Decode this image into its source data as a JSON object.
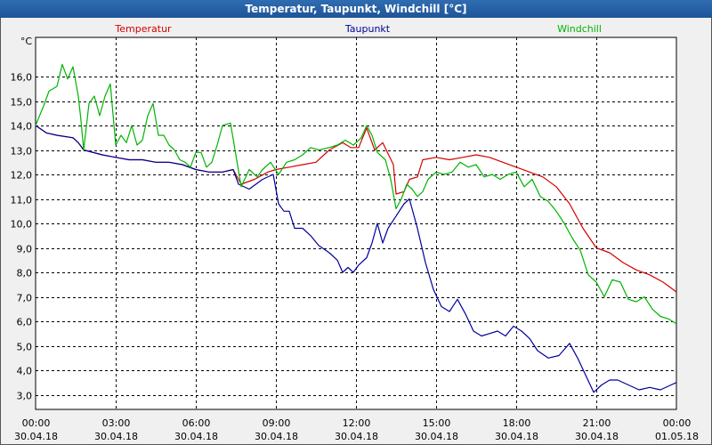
{
  "window": {
    "title": "Temperatur, Taupunkt, Windchill [°C]"
  },
  "chart_data": {
    "type": "line",
    "title": "Temperatur, Taupunkt, Windchill [°C]",
    "unit_label": "°C",
    "ylim": [
      2.4,
      17.6
    ],
    "yticks": [
      3,
      4,
      5,
      6,
      7,
      8,
      9,
      10,
      11,
      12,
      13,
      14,
      15,
      16
    ],
    "ytick_labels": [
      "3,0",
      "4,0",
      "5,0",
      "6,0",
      "7,0",
      "8,0",
      "9,0",
      "10,0",
      "11,0",
      "12,0",
      "13,0",
      "14,0",
      "15,0",
      "16,0"
    ],
    "xlim": [
      0,
      24
    ],
    "xticks": [
      {
        "h": 0,
        "time": "00:00",
        "date": "30.04.18"
      },
      {
        "h": 3,
        "time": "03:00",
        "date": "30.04.18"
      },
      {
        "h": 6,
        "time": "06:00",
        "date": "30.04.18"
      },
      {
        "h": 9,
        "time": "09:00",
        "date": "30.04.18"
      },
      {
        "h": 12,
        "time": "12:00",
        "date": "30.04.18"
      },
      {
        "h": 15,
        "time": "15:00",
        "date": "30.04.18"
      },
      {
        "h": 18,
        "time": "18:00",
        "date": "30.04.18"
      },
      {
        "h": 21,
        "time": "21:00",
        "date": "30.04.18"
      },
      {
        "h": 24,
        "time": "00:00",
        "date": "01.05.18"
      }
    ],
    "grid": true,
    "series": [
      {
        "name": "Temperatur",
        "color": "#d40000",
        "points": [
          [
            0,
            14.0
          ],
          [
            0.4,
            13.7
          ],
          [
            0.8,
            13.6
          ],
          [
            1.4,
            13.5
          ],
          [
            1.6,
            13.3
          ],
          [
            1.8,
            13.0
          ],
          [
            2.5,
            12.8
          ],
          [
            3,
            12.7
          ],
          [
            3.5,
            12.6
          ],
          [
            4,
            12.6
          ],
          [
            4.5,
            12.5
          ],
          [
            5,
            12.5
          ],
          [
            5.5,
            12.4
          ],
          [
            6,
            12.2
          ],
          [
            6.5,
            12.1
          ],
          [
            7,
            12.1
          ],
          [
            7.4,
            12.2
          ],
          [
            7.7,
            11.6
          ],
          [
            8.2,
            11.8
          ],
          [
            8.7,
            12.1
          ],
          [
            9,
            12.2
          ],
          [
            9.5,
            12.3
          ],
          [
            10,
            12.4
          ],
          [
            10.5,
            12.5
          ],
          [
            11,
            13.0
          ],
          [
            11.5,
            13.3
          ],
          [
            11.8,
            13.1
          ],
          [
            12.1,
            13.1
          ],
          [
            12.4,
            13.9
          ],
          [
            12.7,
            13.0
          ],
          [
            13.0,
            13.3
          ],
          [
            13.4,
            12.4
          ],
          [
            13.5,
            11.2
          ],
          [
            13.8,
            11.3
          ],
          [
            14.0,
            11.8
          ],
          [
            14.3,
            11.9
          ],
          [
            14.5,
            12.6
          ],
          [
            15,
            12.7
          ],
          [
            15.5,
            12.6
          ],
          [
            16,
            12.7
          ],
          [
            16.5,
            12.8
          ],
          [
            17,
            12.7
          ],
          [
            17.5,
            12.5
          ],
          [
            18,
            12.3
          ],
          [
            18.5,
            12.1
          ],
          [
            19,
            11.9
          ],
          [
            19.5,
            11.5
          ],
          [
            20,
            10.8
          ],
          [
            20.5,
            9.8
          ],
          [
            21,
            9.0
          ],
          [
            21.5,
            8.8
          ],
          [
            22,
            8.4
          ],
          [
            22.5,
            8.1
          ],
          [
            23,
            7.9
          ],
          [
            23.5,
            7.6
          ],
          [
            24,
            7.2
          ]
        ]
      },
      {
        "name": "Taupunkt",
        "color": "#00009c",
        "points": [
          [
            0,
            14.0
          ],
          [
            0.4,
            13.7
          ],
          [
            0.8,
            13.6
          ],
          [
            1.4,
            13.5
          ],
          [
            1.6,
            13.3
          ],
          [
            1.8,
            13.0
          ],
          [
            2.5,
            12.8
          ],
          [
            3,
            12.7
          ],
          [
            3.5,
            12.6
          ],
          [
            4,
            12.6
          ],
          [
            4.5,
            12.5
          ],
          [
            5,
            12.5
          ],
          [
            5.5,
            12.4
          ],
          [
            6,
            12.2
          ],
          [
            6.5,
            12.1
          ],
          [
            7,
            12.1
          ],
          [
            7.4,
            12.2
          ],
          [
            7.6,
            11.6
          ],
          [
            8,
            11.4
          ],
          [
            8.5,
            11.8
          ],
          [
            8.9,
            12.0
          ],
          [
            9.1,
            10.8
          ],
          [
            9.3,
            10.5
          ],
          [
            9.5,
            10.5
          ],
          [
            9.7,
            9.8
          ],
          [
            10.0,
            9.8
          ],
          [
            10.3,
            9.5
          ],
          [
            10.6,
            9.1
          ],
          [
            11.0,
            8.8
          ],
          [
            11.3,
            8.5
          ],
          [
            11.5,
            8.0
          ],
          [
            11.7,
            8.2
          ],
          [
            11.9,
            8.0
          ],
          [
            12.1,
            8.3
          ],
          [
            12.4,
            8.6
          ],
          [
            12.6,
            9.2
          ],
          [
            12.8,
            10.0
          ],
          [
            13.0,
            9.2
          ],
          [
            13.2,
            9.8
          ],
          [
            13.5,
            10.3
          ],
          [
            13.8,
            10.8
          ],
          [
            14.0,
            11.0
          ],
          [
            14.3,
            9.8
          ],
          [
            14.6,
            8.4
          ],
          [
            14.9,
            7.3
          ],
          [
            15.2,
            6.6
          ],
          [
            15.5,
            6.4
          ],
          [
            15.8,
            6.9
          ],
          [
            16.1,
            6.3
          ],
          [
            16.4,
            5.6
          ],
          [
            16.7,
            5.4
          ],
          [
            17.0,
            5.5
          ],
          [
            17.3,
            5.6
          ],
          [
            17.6,
            5.4
          ],
          [
            17.9,
            5.8
          ],
          [
            18.2,
            5.6
          ],
          [
            18.5,
            5.3
          ],
          [
            18.8,
            4.8
          ],
          [
            19.2,
            4.5
          ],
          [
            19.6,
            4.6
          ],
          [
            20.0,
            5.1
          ],
          [
            20.3,
            4.5
          ],
          [
            20.6,
            3.8
          ],
          [
            20.9,
            3.1
          ],
          [
            21.2,
            3.4
          ],
          [
            21.5,
            3.6
          ],
          [
            21.8,
            3.6
          ],
          [
            22.2,
            3.4
          ],
          [
            22.6,
            3.2
          ],
          [
            23.0,
            3.3
          ],
          [
            23.4,
            3.2
          ],
          [
            23.8,
            3.4
          ],
          [
            24.0,
            3.5
          ]
        ]
      },
      {
        "name": "Windchill",
        "color": "#00b400",
        "points": [
          [
            0,
            14.0
          ],
          [
            0.3,
            14.8
          ],
          [
            0.5,
            15.4
          ],
          [
            0.8,
            15.6
          ],
          [
            1.0,
            16.5
          ],
          [
            1.2,
            15.9
          ],
          [
            1.4,
            16.4
          ],
          [
            1.6,
            15.2
          ],
          [
            1.7,
            14.2
          ],
          [
            1.8,
            13.0
          ],
          [
            2.0,
            14.9
          ],
          [
            2.2,
            15.2
          ],
          [
            2.4,
            14.4
          ],
          [
            2.6,
            15.2
          ],
          [
            2.8,
            15.7
          ],
          [
            3.0,
            13.2
          ],
          [
            3.2,
            13.6
          ],
          [
            3.4,
            13.3
          ],
          [
            3.6,
            14.0
          ],
          [
            3.8,
            13.2
          ],
          [
            4.0,
            13.4
          ],
          [
            4.2,
            14.4
          ],
          [
            4.4,
            14.9
          ],
          [
            4.6,
            13.6
          ],
          [
            4.8,
            13.6
          ],
          [
            5.0,
            13.2
          ],
          [
            5.2,
            13.0
          ],
          [
            5.4,
            12.6
          ],
          [
            5.6,
            12.5
          ],
          [
            5.8,
            12.3
          ],
          [
            6.0,
            12.9
          ],
          [
            6.2,
            12.9
          ],
          [
            6.4,
            12.3
          ],
          [
            6.6,
            12.5
          ],
          [
            6.8,
            13.2
          ],
          [
            7.0,
            14.0
          ],
          [
            7.3,
            14.1
          ],
          [
            7.5,
            12.8
          ],
          [
            7.7,
            11.5
          ],
          [
            8.0,
            12.2
          ],
          [
            8.3,
            11.9
          ],
          [
            8.5,
            12.2
          ],
          [
            8.8,
            12.5
          ],
          [
            9.1,
            12.0
          ],
          [
            9.4,
            12.5
          ],
          [
            9.7,
            12.6
          ],
          [
            10.0,
            12.8
          ],
          [
            10.3,
            13.1
          ],
          [
            10.6,
            13.0
          ],
          [
            11.0,
            13.1
          ],
          [
            11.3,
            13.2
          ],
          [
            11.6,
            13.4
          ],
          [
            11.9,
            13.2
          ],
          [
            12.2,
            13.5
          ],
          [
            12.4,
            14.0
          ],
          [
            12.6,
            13.6
          ],
          [
            12.8,
            12.9
          ],
          [
            13.1,
            12.6
          ],
          [
            13.3,
            11.8
          ],
          [
            13.5,
            10.6
          ],
          [
            13.7,
            11.0
          ],
          [
            13.9,
            11.6
          ],
          [
            14.1,
            11.4
          ],
          [
            14.3,
            11.1
          ],
          [
            14.5,
            11.3
          ],
          [
            14.7,
            11.8
          ],
          [
            15.0,
            12.1
          ],
          [
            15.3,
            12.0
          ],
          [
            15.6,
            12.1
          ],
          [
            15.9,
            12.5
          ],
          [
            16.2,
            12.3
          ],
          [
            16.5,
            12.4
          ],
          [
            16.8,
            11.9
          ],
          [
            17.1,
            12.0
          ],
          [
            17.4,
            11.8
          ],
          [
            17.7,
            12.0
          ],
          [
            18.0,
            12.1
          ],
          [
            18.3,
            11.5
          ],
          [
            18.6,
            11.8
          ],
          [
            18.9,
            11.1
          ],
          [
            19.2,
            10.9
          ],
          [
            19.5,
            10.5
          ],
          [
            19.8,
            10.0
          ],
          [
            20.1,
            9.4
          ],
          [
            20.4,
            8.9
          ],
          [
            20.7,
            7.9
          ],
          [
            21.0,
            7.6
          ],
          [
            21.3,
            7.0
          ],
          [
            21.6,
            7.7
          ],
          [
            21.9,
            7.6
          ],
          [
            22.2,
            6.9
          ],
          [
            22.5,
            6.8
          ],
          [
            22.8,
            7.0
          ],
          [
            23.1,
            6.5
          ],
          [
            23.4,
            6.2
          ],
          [
            23.7,
            6.1
          ],
          [
            24.0,
            5.9
          ]
        ]
      }
    ]
  }
}
